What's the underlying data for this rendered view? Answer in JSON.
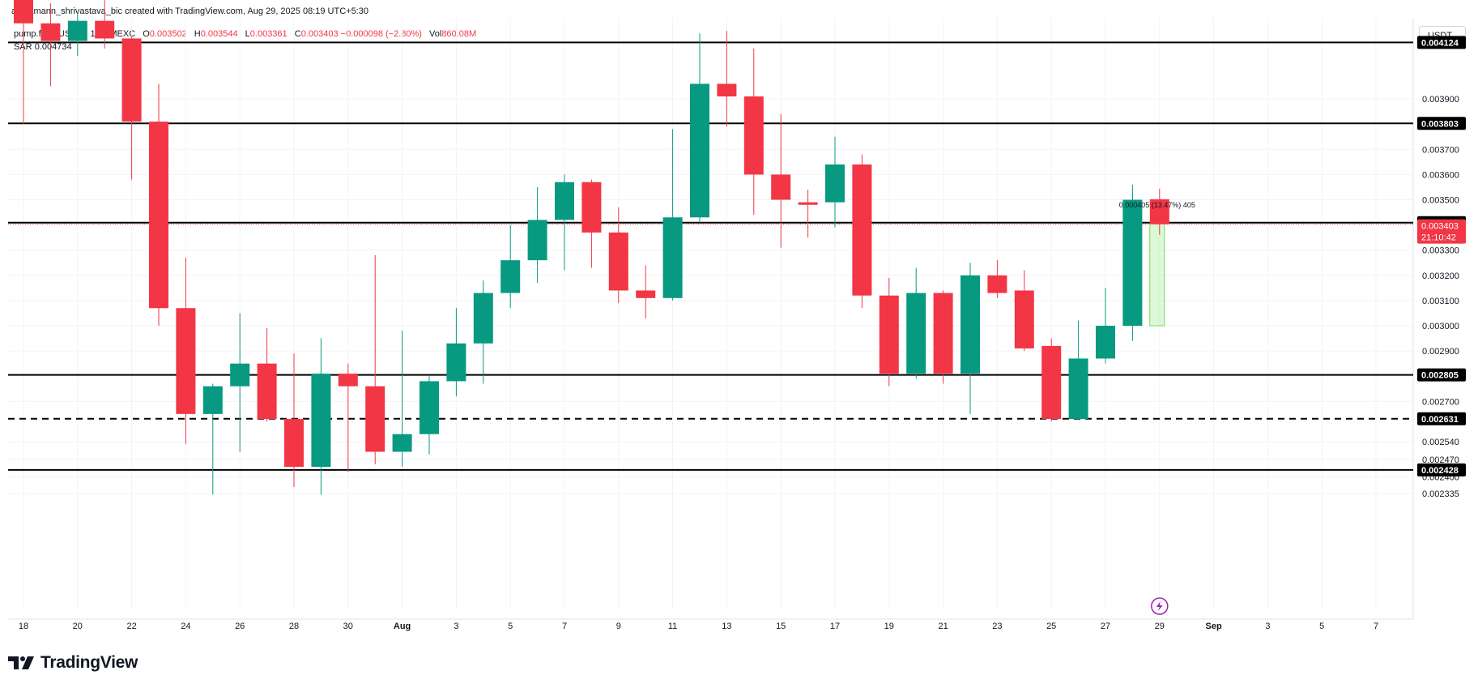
{
  "header": {
    "credit": "aaryamann_shrivastava_bic created with TradingView.com, Aug 29, 2025 08:19 UTC+5:30"
  },
  "legend": {
    "symbol": "pump.fun / USDT · 1D · MEXC",
    "open_label": "O",
    "open": "0.003502",
    "high_label": "H",
    "high": "0.003544",
    "low_label": "L",
    "low": "0.003361",
    "close_label": "C",
    "close": "0.003403",
    "change": "−0.000098 (−2.80%)",
    "vol_label": "Vol",
    "vol": "860.08M",
    "sar_label": "SAR",
    "sar": "0.004734"
  },
  "toolbar": {
    "currency": "USDT"
  },
  "logo": {
    "text": "TradingView",
    "icon": "tradingview-logo-icon"
  },
  "colors": {
    "up": "#089981",
    "down": "#f23645",
    "grid": "#f0f3fa",
    "text": "#131722",
    "measure": "#b2f2a6"
  },
  "chart_data": {
    "type": "candlestick",
    "scale": "linear",
    "grid": true,
    "price_scale": {
      "side": "right",
      "ticks": [
        0.002335,
        0.0024,
        0.00247,
        0.00254,
        0.0027,
        0.0029,
        0.003,
        0.0031,
        0.0032,
        0.0033,
        0.0035,
        0.0036,
        0.0037,
        0.0039
      ]
    },
    "tick_labels": [
      "0.002335",
      "0.002400",
      "0.002470",
      "0.002540",
      "0.002700",
      "0.002900",
      "0.003000",
      "0.003100",
      "0.003200",
      "0.003300",
      "0.003500",
      "0.003600",
      "0.003700",
      "0.003900"
    ],
    "time_axis": [
      "18",
      "20",
      "22",
      "24",
      "26",
      "28",
      "30",
      "Aug",
      "3",
      "5",
      "7",
      "9",
      "11",
      "13",
      "15",
      "17",
      "19",
      "21",
      "23",
      "25",
      "27",
      "29",
      "Sep",
      "3",
      "5",
      "7"
    ],
    "candles": [
      {
        "d": "Jul 18",
        "o": 0.00433,
        "h": 0.0045,
        "l": 0.0038,
        "c": 0.0042
      },
      {
        "d": "Jul 19",
        "o": 0.0042,
        "h": 0.00428,
        "l": 0.00395,
        "c": 0.00413
      },
      {
        "d": "Jul 20",
        "o": 0.00413,
        "h": 0.00424,
        "l": 0.00407,
        "c": 0.00421
      },
      {
        "d": "Jul 21",
        "o": 0.00421,
        "h": 0.00431,
        "l": 0.0041,
        "c": 0.00414
      },
      {
        "d": "Jul 22",
        "o": 0.00414,
        "h": 0.00415,
        "l": 0.00358,
        "c": 0.00381
      },
      {
        "d": "Jul 23",
        "o": 0.00381,
        "h": 0.00396,
        "l": 0.003,
        "c": 0.00307
      },
      {
        "d": "Jul 24",
        "o": 0.00307,
        "h": 0.00327,
        "l": 0.00253,
        "c": 0.00265
      },
      {
        "d": "Jul 25",
        "o": 0.00265,
        "h": 0.00277,
        "l": 0.00233,
        "c": 0.00276
      },
      {
        "d": "Jul 26",
        "o": 0.00276,
        "h": 0.00305,
        "l": 0.0025,
        "c": 0.00285
      },
      {
        "d": "Jul 27",
        "o": 0.00285,
        "h": 0.00299,
        "l": 0.00262,
        "c": 0.00263
      },
      {
        "d": "Jul 28",
        "o": 0.00263,
        "h": 0.00289,
        "l": 0.00236,
        "c": 0.00244
      },
      {
        "d": "Jul 29",
        "o": 0.00244,
        "h": 0.00295,
        "l": 0.00233,
        "c": 0.00281
      },
      {
        "d": "Jul 30",
        "o": 0.00281,
        "h": 0.00285,
        "l": 0.00242,
        "c": 0.00276
      },
      {
        "d": "Jul 31",
        "o": 0.00276,
        "h": 0.00328,
        "l": 0.00245,
        "c": 0.0025
      },
      {
        "d": "Aug 1",
        "o": 0.0025,
        "h": 0.00298,
        "l": 0.00244,
        "c": 0.00257
      },
      {
        "d": "Aug 2",
        "o": 0.00257,
        "h": 0.0028,
        "l": 0.00249,
        "c": 0.00278
      },
      {
        "d": "Aug 3",
        "o": 0.00278,
        "h": 0.00307,
        "l": 0.00272,
        "c": 0.00293
      },
      {
        "d": "Aug 4",
        "o": 0.00293,
        "h": 0.00318,
        "l": 0.00277,
        "c": 0.00313
      },
      {
        "d": "Aug 5",
        "o": 0.00313,
        "h": 0.0034,
        "l": 0.00307,
        "c": 0.00326
      },
      {
        "d": "Aug 6",
        "o": 0.00326,
        "h": 0.00355,
        "l": 0.00317,
        "c": 0.00342
      },
      {
        "d": "Aug 7",
        "o": 0.00342,
        "h": 0.0036,
        "l": 0.00322,
        "c": 0.00357
      },
      {
        "d": "Aug 8",
        "o": 0.00357,
        "h": 0.00358,
        "l": 0.00323,
        "c": 0.00337
      },
      {
        "d": "Aug 9",
        "o": 0.00337,
        "h": 0.00347,
        "l": 0.00309,
        "c": 0.00314
      },
      {
        "d": "Aug 10",
        "o": 0.00314,
        "h": 0.00324,
        "l": 0.00303,
        "c": 0.00311
      },
      {
        "d": "Aug 11",
        "o": 0.00311,
        "h": 0.00378,
        "l": 0.0031,
        "c": 0.00343
      },
      {
        "d": "Aug 12",
        "o": 0.00343,
        "h": 0.00416,
        "l": 0.00341,
        "c": 0.00396
      },
      {
        "d": "Aug 13",
        "o": 0.00396,
        "h": 0.00417,
        "l": 0.00379,
        "c": 0.00391
      },
      {
        "d": "Aug 14",
        "o": 0.00391,
        "h": 0.0041,
        "l": 0.00344,
        "c": 0.0036
      },
      {
        "d": "Aug 15",
        "o": 0.0036,
        "h": 0.00384,
        "l": 0.00331,
        "c": 0.0035
      },
      {
        "d": "Aug 16",
        "o": 0.00349,
        "h": 0.00354,
        "l": 0.00335,
        "c": 0.00348
      },
      {
        "d": "Aug 17",
        "o": 0.00349,
        "h": 0.00375,
        "l": 0.00339,
        "c": 0.00364
      },
      {
        "d": "Aug 18",
        "o": 0.00364,
        "h": 0.00368,
        "l": 0.00307,
        "c": 0.00312
      },
      {
        "d": "Aug 19",
        "o": 0.00312,
        "h": 0.00319,
        "l": 0.00276,
        "c": 0.00281
      },
      {
        "d": "Aug 20",
        "o": 0.00281,
        "h": 0.00323,
        "l": 0.00279,
        "c": 0.00313
      },
      {
        "d": "Aug 21",
        "o": 0.00313,
        "h": 0.00314,
        "l": 0.00277,
        "c": 0.00281
      },
      {
        "d": "Aug 22",
        "o": 0.00281,
        "h": 0.00325,
        "l": 0.00265,
        "c": 0.0032
      },
      {
        "d": "Aug 23",
        "o": 0.0032,
        "h": 0.00326,
        "l": 0.00311,
        "c": 0.00313
      },
      {
        "d": "Aug 24",
        "o": 0.00314,
        "h": 0.00322,
        "l": 0.0029,
        "c": 0.00291
      },
      {
        "d": "Aug 25",
        "o": 0.00292,
        "h": 0.00295,
        "l": 0.00262,
        "c": 0.00263
      },
      {
        "d": "Aug 26",
        "o": 0.00263,
        "h": 0.00302,
        "l": 0.00263,
        "c": 0.00287
      },
      {
        "d": "Aug 27",
        "o": 0.00287,
        "h": 0.00315,
        "l": 0.00285,
        "c": 0.003
      },
      {
        "d": "Aug 28",
        "o": 0.003,
        "h": 0.00356,
        "l": 0.00294,
        "c": 0.0035
      },
      {
        "d": "Aug 29",
        "o": 0.003502,
        "h": 0.003544,
        "l": 0.003361,
        "c": 0.003403
      }
    ],
    "horizontal_levels": [
      {
        "price": 0.004124,
        "label": "0.004124",
        "style": "solid"
      },
      {
        "price": 0.003803,
        "label": "0.003803",
        "style": "solid"
      },
      {
        "price": 0.003409,
        "label": "0.003409",
        "style": "solid"
      },
      {
        "price": 0.002805,
        "label": "0.002805",
        "style": "solid"
      },
      {
        "price": 0.002631,
        "label": "0.002631",
        "style": "dashed"
      },
      {
        "price": 0.002428,
        "label": "0.002428",
        "style": "solid"
      }
    ],
    "last_price": {
      "label": "0.003403",
      "countdown": "21:10:42"
    },
    "measurement": {
      "label": "0.000405 (13.47%) 405",
      "from": 0.003,
      "to": 0.003405
    }
  }
}
